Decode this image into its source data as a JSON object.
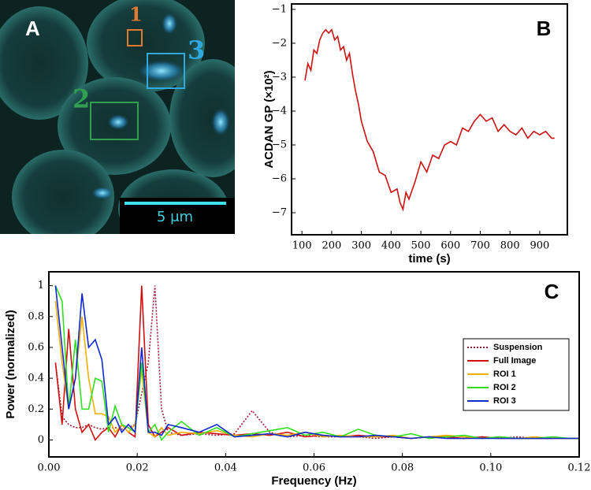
{
  "panel_a": {
    "label": "A",
    "roi_labels": [
      "1",
      "2",
      "3"
    ],
    "scale_bar": "5 μm"
  },
  "chart_data": [
    {
      "type": "line",
      "panel_label": "B",
      "ylabel": "ACDAN GP (×10²)",
      "xlabel": "time (s)",
      "color": "#cc1111",
      "x": [
        110,
        120,
        130,
        140,
        150,
        160,
        170,
        180,
        190,
        200,
        210,
        220,
        230,
        240,
        250,
        260,
        270,
        280,
        290,
        300,
        320,
        340,
        360,
        380,
        400,
        420,
        430,
        440,
        450,
        460,
        480,
        500,
        520,
        540,
        560,
        580,
        600,
        620,
        640,
        660,
        680,
        700,
        720,
        740,
        760,
        780,
        800,
        820,
        840,
        860,
        880,
        900,
        920,
        940,
        950
      ],
      "values": [
        -3.1,
        -2.6,
        -2.8,
        -2.2,
        -2.3,
        -1.9,
        -1.7,
        -1.6,
        -1.7,
        -1.6,
        -1.9,
        -1.8,
        -2.2,
        -2.1,
        -2.5,
        -2.3,
        -2.9,
        -3.4,
        -3.8,
        -4.3,
        -4.9,
        -5.2,
        -5.8,
        -5.9,
        -6.4,
        -6.3,
        -6.7,
        -6.9,
        -6.4,
        -6.6,
        -6.1,
        -5.5,
        -5.8,
        -5.3,
        -5.4,
        -5.0,
        -4.9,
        -5.0,
        -4.5,
        -4.6,
        -4.3,
        -4.1,
        -4.3,
        -4.2,
        -4.6,
        -4.4,
        -4.6,
        -4.7,
        -4.5,
        -4.8,
        -4.6,
        -4.7,
        -4.6,
        -4.8,
        -4.8
      ],
      "xlim": [
        65,
        993
      ],
      "xticks": [
        100,
        200,
        300,
        400,
        500,
        600,
        700,
        800,
        900
      ],
      "ylim": [
        -7.65,
        -0.84
      ],
      "yticks": [
        {
          "value": -7,
          "label": "−7"
        },
        {
          "value": -6,
          "label": "−6"
        },
        {
          "value": -5,
          "label": "−5"
        },
        {
          "value": -4,
          "label": "−4"
        },
        {
          "value": -3,
          "label": "−3"
        },
        {
          "value": -2,
          "label": "−2"
        },
        {
          "value": -1,
          "label": "−1"
        }
      ]
    },
    {
      "type": "line",
      "panel_label": "C",
      "ylabel": "Power (normalized)",
      "xlabel": "Frequency (Hz)",
      "legend": "center right",
      "x": [
        0.0015,
        0.003,
        0.0045,
        0.006,
        0.0075,
        0.009,
        0.0105,
        0.012,
        0.0135,
        0.015,
        0.0165,
        0.018,
        0.0195,
        0.021,
        0.0225,
        0.024,
        0.0255,
        0.027,
        0.03,
        0.034,
        0.038,
        0.042,
        0.046,
        0.05,
        0.054,
        0.058,
        0.062,
        0.066,
        0.07,
        0.074,
        0.078,
        0.082,
        0.086,
        0.09,
        0.094,
        0.098,
        0.102,
        0.106,
        0.11,
        0.114,
        0.118,
        0.12
      ],
      "series": [
        {
          "name": "Suspension",
          "color": "#a01838",
          "linestyle": "dotted",
          "values": [
            0.5,
            0.15,
            0.1,
            0.08,
            0.08,
            0.1,
            0.08,
            0.07,
            0.08,
            0.08,
            0.07,
            0.08,
            0.1,
            0.3,
            0.5,
            1.0,
            0.2,
            0.05,
            0.03,
            0.04,
            0.03,
            0.04,
            0.19,
            0.05,
            0.02,
            0.03,
            0.02,
            0.02,
            0.02,
            0.01,
            0.02,
            0.01,
            0.02,
            0.01,
            0.01,
            0.02,
            0.01,
            0.02,
            0.01,
            0.01,
            0.01,
            0.01
          ]
        },
        {
          "name": "Full Image",
          "color": "#d01010",
          "linestyle": "solid",
          "values": [
            0.5,
            0.1,
            0.72,
            0.2,
            0.05,
            0.1,
            0.0,
            0.05,
            0.08,
            0.02,
            0.1,
            0.05,
            0.02,
            1.0,
            0.1,
            0.02,
            0.05,
            0.08,
            0.03,
            0.05,
            0.04,
            0.03,
            0.04,
            0.03,
            0.05,
            0.02,
            0.03,
            0.02,
            0.03,
            0.02,
            0.02,
            0.01,
            0.02,
            0.02,
            0.01,
            0.02,
            0.01,
            0.01,
            0.01,
            0.01,
            0.01,
            0.01
          ]
        },
        {
          "name": "ROI 1",
          "color": "#f0b000",
          "linestyle": "solid",
          "values": [
            0.9,
            0.5,
            0.2,
            0.4,
            0.8,
            0.4,
            0.17,
            0.17,
            0.15,
            0.05,
            0.1,
            0.05,
            0.1,
            0.45,
            0.05,
            0.02,
            0.08,
            0.03,
            0.05,
            0.04,
            0.06,
            0.03,
            0.02,
            0.04,
            0.03,
            0.05,
            0.02,
            0.03,
            0.02,
            0.02,
            0.03,
            0.01,
            0.02,
            0.03,
            0.02,
            0.01,
            0.02,
            0.01,
            0.02,
            0.01,
            0.01,
            0.01
          ]
        },
        {
          "name": "ROI 2",
          "color": "#30e020",
          "linestyle": "solid",
          "values": [
            1.0,
            0.9,
            0.2,
            0.65,
            0.2,
            0.2,
            0.4,
            0.38,
            0.05,
            0.22,
            0.1,
            0.08,
            0.05,
            0.5,
            0.05,
            0.1,
            0.0,
            0.05,
            0.12,
            0.03,
            0.08,
            0.02,
            0.04,
            0.06,
            0.08,
            0.03,
            0.05,
            0.02,
            0.07,
            0.03,
            0.02,
            0.04,
            0.01,
            0.02,
            0.03,
            0.01,
            0.02,
            0.01,
            0.01,
            0.02,
            0.01,
            0.01
          ]
        },
        {
          "name": "ROI 3",
          "color": "#1028d0",
          "linestyle": "solid",
          "values": [
            1.0,
            0.6,
            0.2,
            0.4,
            0.95,
            0.6,
            0.65,
            0.52,
            0.1,
            0.15,
            0.05,
            0.1,
            0.05,
            0.6,
            0.05,
            0.05,
            0.03,
            0.1,
            0.08,
            0.05,
            0.1,
            0.02,
            0.03,
            0.04,
            0.02,
            0.05,
            0.03,
            0.02,
            0.02,
            0.03,
            0.02,
            0.01,
            0.02,
            0.01,
            0.01,
            0.01,
            0.01,
            0.01,
            0.01,
            0.01,
            0.01,
            0.01
          ]
        }
      ],
      "xlim": [
        0,
        0.12
      ],
      "xticks": [
        {
          "value": 0,
          "label": "0.00"
        },
        {
          "value": 0.02,
          "label": "0.02"
        },
        {
          "value": 0.04,
          "label": "0.04"
        },
        {
          "value": 0.06,
          "label": "0.06"
        },
        {
          "value": 0.08,
          "label": "0.08"
        },
        {
          "value": 0.1,
          "label": "0.10"
        },
        {
          "value": 0.12,
          "label": "0.12"
        }
      ],
      "ylim": [
        -0.11,
        1.09
      ],
      "yticks": [
        0,
        0.2,
        0.4,
        0.6,
        0.8,
        1
      ]
    }
  ]
}
